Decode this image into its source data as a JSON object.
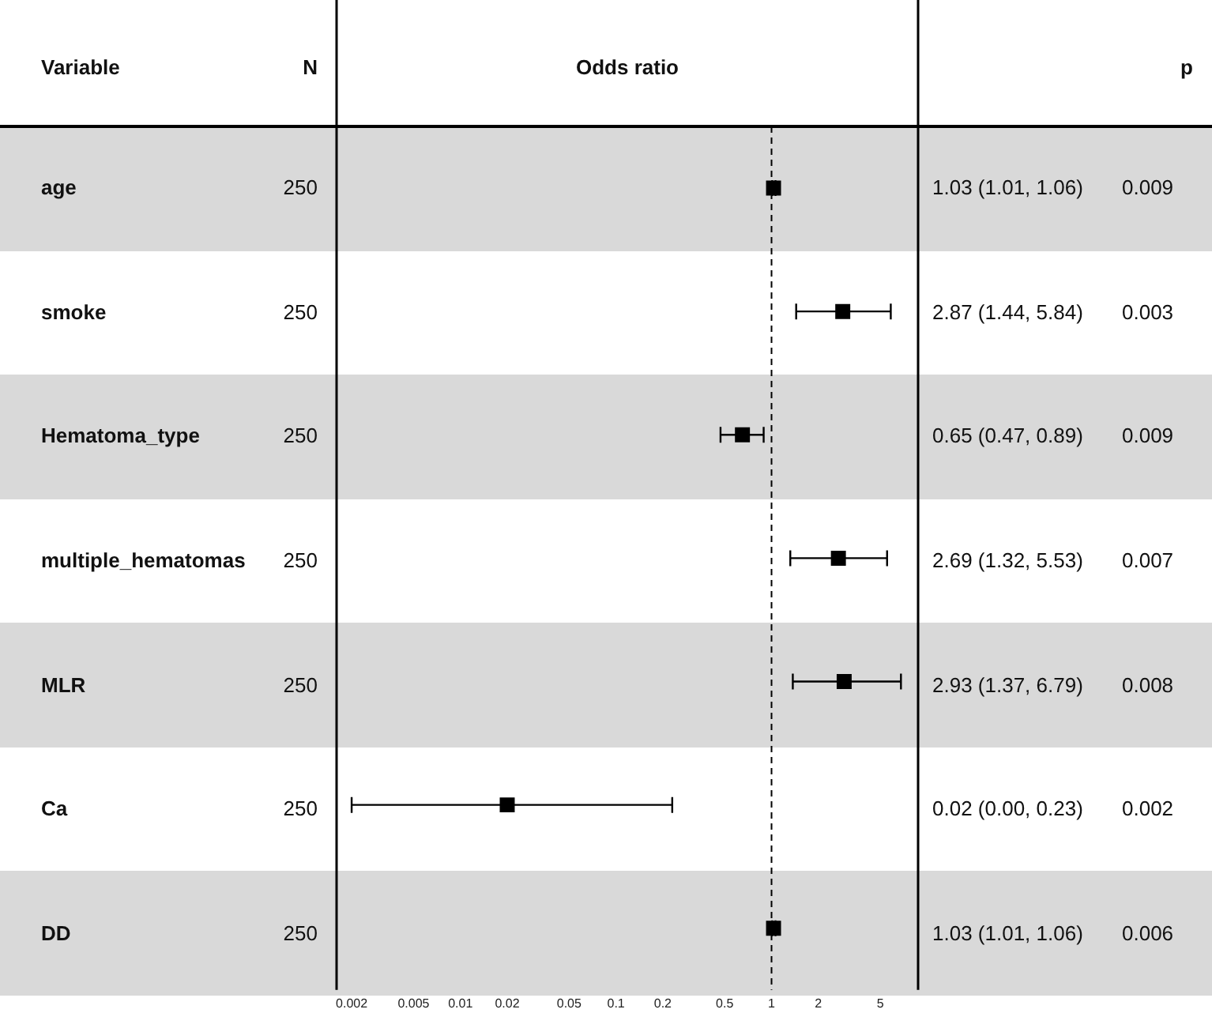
{
  "chart_data": {
    "type": "scatter",
    "orientation": "horizontal",
    "xlabel": "Odds ratio",
    "ylabel": "Variable",
    "categories": [
      "age",
      "smoke",
      "Hematoma_type",
      "multiple_hematomas",
      "MLR",
      "Ca",
      "DD"
    ],
    "values": [
      1.03,
      2.87,
      0.65,
      2.69,
      2.93,
      0.02,
      1.03
    ],
    "errors": [
      [
        1.01,
        1.06
      ],
      [
        1.44,
        5.84
      ],
      [
        0.47,
        0.89
      ],
      [
        1.32,
        5.53
      ],
      [
        1.37,
        6.79
      ],
      [
        0.002,
        0.23
      ],
      [
        1.01,
        1.06
      ]
    ],
    "value_labels": [
      "1.03 (1.01, 1.06)",
      "2.87 (1.44, 5.84)",
      "0.65 (0.47, 0.89)",
      "2.69 (1.32, 5.53)",
      "2.93 (1.37, 6.79)",
      "0.02 (0.00, 0.23)",
      "1.03 (1.01, 1.06)"
    ],
    "color": "#000000",
    "marker": "square",
    "grid": false,
    "legend": false,
    "log": "x",
    "xlim": [
      0.0016,
      8.75
    ],
    "xticks": [
      0.002,
      0.005,
      0.01,
      0.02,
      0.05,
      0.1,
      0.2,
      0.5,
      1,
      2,
      5
    ],
    "ref_lines": [
      {
        "axis": "x",
        "value": 1,
        "line_style": "dashed",
        "color": "#000000"
      }
    ],
    "annotations": [
      "N",
      "p",
      "250",
      "250",
      "250",
      "250",
      "250",
      "250",
      "250",
      "0.009",
      "0.003",
      "0.009",
      "0.007",
      "0.008",
      "0.002",
      "0.006"
    ]
  }
}
